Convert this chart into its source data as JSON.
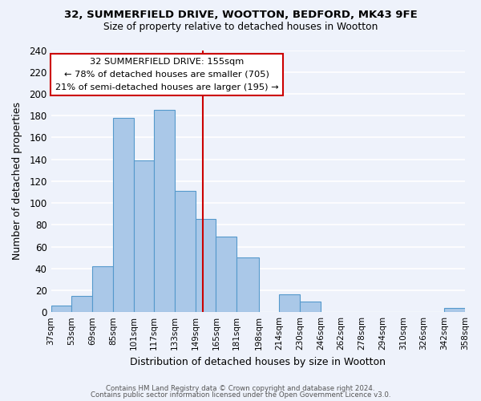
{
  "title1": "32, SUMMERFIELD DRIVE, WOOTTON, BEDFORD, MK43 9FE",
  "title2": "Size of property relative to detached houses in Wootton",
  "xlabel": "Distribution of detached houses by size in Wootton",
  "ylabel": "Number of detached properties",
  "bar_edges": [
    37,
    53,
    69,
    85,
    101,
    117,
    133,
    149,
    165,
    181,
    198,
    214,
    230,
    246,
    262,
    278,
    294,
    310,
    326,
    342,
    358
  ],
  "bar_heights": [
    6,
    15,
    42,
    178,
    139,
    185,
    111,
    85,
    69,
    50,
    0,
    16,
    10,
    0,
    0,
    0,
    0,
    0,
    0,
    4
  ],
  "bar_color": "#aac8e8",
  "bar_edge_color": "#5599cc",
  "vline_x": 155,
  "vline_color": "#cc0000",
  "ylim": [
    0,
    240
  ],
  "yticks": [
    0,
    20,
    40,
    60,
    80,
    100,
    120,
    140,
    160,
    180,
    200,
    220,
    240
  ],
  "tick_labels": [
    "37sqm",
    "53sqm",
    "69sqm",
    "85sqm",
    "101sqm",
    "117sqm",
    "133sqm",
    "149sqm",
    "165sqm",
    "181sqm",
    "198sqm",
    "214sqm",
    "230sqm",
    "246sqm",
    "262sqm",
    "278sqm",
    "294sqm",
    "310sqm",
    "326sqm",
    "342sqm",
    "358sqm"
  ],
  "annotation_title": "32 SUMMERFIELD DRIVE: 155sqm",
  "annotation_line1": "← 78% of detached houses are smaller (705)",
  "annotation_line2": "21% of semi-detached houses are larger (195) →",
  "annotation_box_color": "#ffffff",
  "annotation_box_edge": "#cc0000",
  "footer1": "Contains HM Land Registry data © Crown copyright and database right 2024.",
  "footer2": "Contains public sector information licensed under the Open Government Licence v3.0.",
  "background_color": "#eef2fb",
  "grid_color": "#ffffff"
}
